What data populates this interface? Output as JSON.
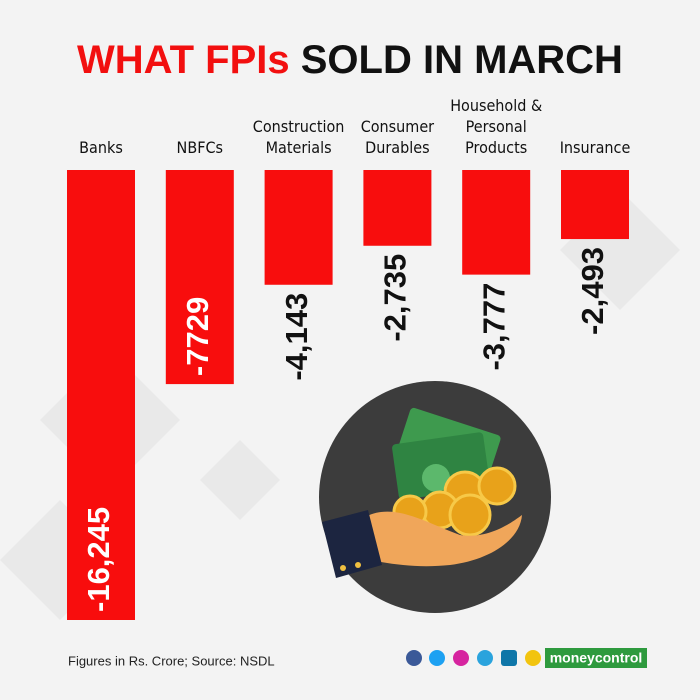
{
  "chart_data": {
    "type": "bar",
    "title": [
      "WHAT FPIs",
      "SOLD IN MARCH"
    ],
    "categories": [
      "Banks",
      "NBFCs",
      "Construction Materials",
      "Consumer Durables",
      "Household & Personal Products",
      "Insurance"
    ],
    "values": [
      -16245,
      -7729,
      -4143,
      -2735,
      -3777,
      -2493
    ],
    "value_labels": [
      "-16,245",
      "-7729",
      "-4,143",
      "-2,735",
      "-3,777",
      "-2,493"
    ],
    "color": "#f80d0d",
    "note": "Figures in Rs. Crore; Source: NSDL",
    "brand": "moneycontrol"
  }
}
